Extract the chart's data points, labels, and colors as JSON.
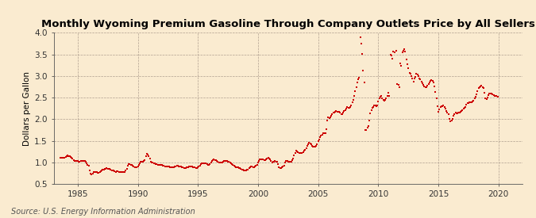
{
  "title": "Monthly Wyoming Premium Gasoline Through Company Outlets Price by All Sellers",
  "ylabel": "Dollars per Gallon",
  "source": "Source: U.S. Energy Information Administration",
  "xlim": [
    1983,
    2022
  ],
  "ylim": [
    0.5,
    4.0
  ],
  "xticks": [
    1985,
    1990,
    1995,
    2000,
    2005,
    2010,
    2015,
    2020
  ],
  "yticks": [
    0.5,
    1.0,
    1.5,
    2.0,
    2.5,
    3.0,
    3.5,
    4.0
  ],
  "bg_color": "#faebd0",
  "plot_bg_color": "#faebd0",
  "marker_color": "#cc0000",
  "marker_size": 3.5,
  "title_fontsize": 9.5,
  "label_fontsize": 7.5,
  "tick_fontsize": 7.5,
  "source_fontsize": 7.0,
  "data": [
    [
      1983.583,
      1.109
    ],
    [
      1983.667,
      1.103
    ],
    [
      1983.75,
      1.109
    ],
    [
      1983.833,
      1.115
    ],
    [
      1983.917,
      1.115
    ],
    [
      1984.0,
      1.125
    ],
    [
      1984.083,
      1.149
    ],
    [
      1984.167,
      1.159
    ],
    [
      1984.25,
      1.147
    ],
    [
      1984.333,
      1.143
    ],
    [
      1984.417,
      1.121
    ],
    [
      1984.5,
      1.117
    ],
    [
      1984.583,
      1.093
    ],
    [
      1984.667,
      1.062
    ],
    [
      1984.75,
      1.043
    ],
    [
      1984.833,
      1.046
    ],
    [
      1984.917,
      1.038
    ],
    [
      1985.0,
      1.03
    ],
    [
      1985.083,
      1.022
    ],
    [
      1985.167,
      1.028
    ],
    [
      1985.25,
      1.037
    ],
    [
      1985.333,
      1.043
    ],
    [
      1985.417,
      1.04
    ],
    [
      1985.5,
      1.037
    ],
    [
      1985.583,
      1.033
    ],
    [
      1985.667,
      1.02
    ],
    [
      1985.75,
      0.978
    ],
    [
      1985.833,
      0.943
    ],
    [
      1985.917,
      0.93
    ],
    [
      1986.0,
      0.82
    ],
    [
      1986.083,
      0.745
    ],
    [
      1986.167,
      0.72
    ],
    [
      1986.25,
      0.752
    ],
    [
      1986.333,
      0.779
    ],
    [
      1986.417,
      0.786
    ],
    [
      1986.5,
      0.787
    ],
    [
      1986.583,
      0.776
    ],
    [
      1986.667,
      0.765
    ],
    [
      1986.75,
      0.767
    ],
    [
      1986.833,
      0.786
    ],
    [
      1986.917,
      0.8
    ],
    [
      1987.0,
      0.818
    ],
    [
      1987.083,
      0.835
    ],
    [
      1987.167,
      0.843
    ],
    [
      1987.25,
      0.855
    ],
    [
      1987.333,
      0.86
    ],
    [
      1987.417,
      0.868
    ],
    [
      1987.5,
      0.86
    ],
    [
      1987.583,
      0.853
    ],
    [
      1987.667,
      0.848
    ],
    [
      1987.75,
      0.832
    ],
    [
      1987.833,
      0.818
    ],
    [
      1987.917,
      0.82
    ],
    [
      1988.0,
      0.818
    ],
    [
      1988.083,
      0.795
    ],
    [
      1988.167,
      0.79
    ],
    [
      1988.25,
      0.795
    ],
    [
      1988.333,
      0.793
    ],
    [
      1988.417,
      0.788
    ],
    [
      1988.5,
      0.785
    ],
    [
      1988.583,
      0.783
    ],
    [
      1988.667,
      0.778
    ],
    [
      1988.75,
      0.773
    ],
    [
      1988.833,
      0.773
    ],
    [
      1988.917,
      0.778
    ],
    [
      1989.0,
      0.82
    ],
    [
      1989.083,
      0.855
    ],
    [
      1989.167,
      0.92
    ],
    [
      1989.25,
      0.963
    ],
    [
      1989.333,
      0.958
    ],
    [
      1989.417,
      0.943
    ],
    [
      1989.5,
      0.938
    ],
    [
      1989.583,
      0.93
    ],
    [
      1989.667,
      0.915
    ],
    [
      1989.75,
      0.9
    ],
    [
      1989.833,
      0.893
    ],
    [
      1989.917,
      0.888
    ],
    [
      1990.0,
      0.91
    ],
    [
      1990.083,
      0.955
    ],
    [
      1990.167,
      0.988
    ],
    [
      1990.25,
      1.013
    ],
    [
      1990.333,
      1.02
    ],
    [
      1990.417,
      1.025
    ],
    [
      1990.5,
      1.035
    ],
    [
      1990.583,
      1.055
    ],
    [
      1990.667,
      1.15
    ],
    [
      1990.75,
      1.21
    ],
    [
      1990.833,
      1.19
    ],
    [
      1990.917,
      1.14
    ],
    [
      1991.0,
      1.09
    ],
    [
      1991.083,
      1.02
    ],
    [
      1991.167,
      0.998
    ],
    [
      1991.25,
      0.998
    ],
    [
      1991.333,
      0.988
    ],
    [
      1991.417,
      0.983
    ],
    [
      1991.5,
      0.973
    ],
    [
      1991.583,
      0.963
    ],
    [
      1991.667,
      0.948
    ],
    [
      1991.75,
      0.94
    ],
    [
      1991.833,
      0.943
    ],
    [
      1991.917,
      0.955
    ],
    [
      1992.0,
      0.94
    ],
    [
      1992.083,
      0.93
    ],
    [
      1992.167,
      0.92
    ],
    [
      1992.25,
      0.918
    ],
    [
      1992.333,
      0.915
    ],
    [
      1992.417,
      0.912
    ],
    [
      1992.5,
      0.908
    ],
    [
      1992.583,
      0.903
    ],
    [
      1992.667,
      0.898
    ],
    [
      1992.75,
      0.895
    ],
    [
      1992.833,
      0.893
    ],
    [
      1992.917,
      0.895
    ],
    [
      1993.0,
      0.9
    ],
    [
      1993.083,
      0.905
    ],
    [
      1993.167,
      0.913
    ],
    [
      1993.25,
      0.92
    ],
    [
      1993.333,
      0.92
    ],
    [
      1993.417,
      0.915
    ],
    [
      1993.5,
      0.91
    ],
    [
      1993.583,
      0.903
    ],
    [
      1993.667,
      0.895
    ],
    [
      1993.75,
      0.885
    ],
    [
      1993.833,
      0.88
    ],
    [
      1993.917,
      0.878
    ],
    [
      1994.0,
      0.88
    ],
    [
      1994.083,
      0.888
    ],
    [
      1994.167,
      0.898
    ],
    [
      1994.25,
      0.91
    ],
    [
      1994.333,
      0.915
    ],
    [
      1994.417,
      0.913
    ],
    [
      1994.5,
      0.908
    ],
    [
      1994.583,
      0.898
    ],
    [
      1994.667,
      0.89
    ],
    [
      1994.75,
      0.883
    ],
    [
      1994.833,
      0.878
    ],
    [
      1994.917,
      0.878
    ],
    [
      1995.0,
      0.885
    ],
    [
      1995.083,
      0.903
    ],
    [
      1995.167,
      0.93
    ],
    [
      1995.25,
      0.963
    ],
    [
      1995.333,
      0.975
    ],
    [
      1995.417,
      0.988
    ],
    [
      1995.5,
      0.99
    ],
    [
      1995.583,
      0.985
    ],
    [
      1995.667,
      0.975
    ],
    [
      1995.75,
      0.963
    ],
    [
      1995.833,
      0.95
    ],
    [
      1995.917,
      0.948
    ],
    [
      1996.0,
      0.96
    ],
    [
      1996.083,
      0.995
    ],
    [
      1996.167,
      1.04
    ],
    [
      1996.25,
      1.065
    ],
    [
      1996.333,
      1.068
    ],
    [
      1996.417,
      1.06
    ],
    [
      1996.5,
      1.048
    ],
    [
      1996.583,
      1.03
    ],
    [
      1996.667,
      1.013
    ],
    [
      1996.75,
      1.005
    ],
    [
      1996.833,
      1.0
    ],
    [
      1996.917,
      1.005
    ],
    [
      1997.0,
      1.01
    ],
    [
      1997.083,
      1.02
    ],
    [
      1997.167,
      1.03
    ],
    [
      1997.25,
      1.04
    ],
    [
      1997.333,
      1.04
    ],
    [
      1997.417,
      1.035
    ],
    [
      1997.5,
      1.028
    ],
    [
      1997.583,
      1.018
    ],
    [
      1997.667,
      1.003
    ],
    [
      1997.75,
      0.985
    ],
    [
      1997.833,
      0.968
    ],
    [
      1997.917,
      0.948
    ],
    [
      1998.0,
      0.933
    ],
    [
      1998.083,
      0.908
    ],
    [
      1998.167,
      0.888
    ],
    [
      1998.25,
      0.888
    ],
    [
      1998.333,
      0.89
    ],
    [
      1998.417,
      0.88
    ],
    [
      1998.5,
      0.87
    ],
    [
      1998.583,
      0.858
    ],
    [
      1998.667,
      0.843
    ],
    [
      1998.75,
      0.83
    ],
    [
      1998.833,
      0.82
    ],
    [
      1998.917,
      0.82
    ],
    [
      1999.0,
      0.825
    ],
    [
      1999.083,
      0.828
    ],
    [
      1999.167,
      0.84
    ],
    [
      1999.25,
      0.88
    ],
    [
      1999.333,
      0.9
    ],
    [
      1999.417,
      0.91
    ],
    [
      1999.5,
      0.905
    ],
    [
      1999.583,
      0.898
    ],
    [
      1999.667,
      0.898
    ],
    [
      1999.75,
      0.905
    ],
    [
      1999.833,
      0.925
    ],
    [
      1999.917,
      0.948
    ],
    [
      2000.0,
      1.005
    ],
    [
      2000.083,
      1.043
    ],
    [
      2000.167,
      1.068
    ],
    [
      2000.25,
      1.08
    ],
    [
      2000.333,
      1.08
    ],
    [
      2000.417,
      1.068
    ],
    [
      2000.5,
      1.058
    ],
    [
      2000.583,
      1.063
    ],
    [
      2000.667,
      1.075
    ],
    [
      2000.75,
      1.098
    ],
    [
      2000.833,
      1.108
    ],
    [
      2000.917,
      1.1
    ],
    [
      2001.0,
      1.073
    ],
    [
      2001.083,
      1.033
    ],
    [
      2001.167,
      1.003
    ],
    [
      2001.25,
      1.013
    ],
    [
      2001.333,
      1.028
    ],
    [
      2001.417,
      1.033
    ],
    [
      2001.5,
      1.025
    ],
    [
      2001.583,
      1.013
    ],
    [
      2001.667,
      0.97
    ],
    [
      2001.75,
      0.898
    ],
    [
      2001.833,
      0.875
    ],
    [
      2001.917,
      0.878
    ],
    [
      2002.0,
      0.898
    ],
    [
      2002.083,
      0.913
    ],
    [
      2002.167,
      0.935
    ],
    [
      2002.25,
      1.008
    ],
    [
      2002.333,
      1.038
    ],
    [
      2002.417,
      1.035
    ],
    [
      2002.5,
      1.028
    ],
    [
      2002.583,
      1.02
    ],
    [
      2002.667,
      1.02
    ],
    [
      2002.75,
      1.025
    ],
    [
      2002.833,
      1.055
    ],
    [
      2002.917,
      1.098
    ],
    [
      2003.0,
      1.168
    ],
    [
      2003.083,
      1.228
    ],
    [
      2003.167,
      1.27
    ],
    [
      2003.25,
      1.258
    ],
    [
      2003.333,
      1.245
    ],
    [
      2003.417,
      1.22
    ],
    [
      2003.5,
      1.215
    ],
    [
      2003.583,
      1.218
    ],
    [
      2003.667,
      1.228
    ],
    [
      2003.75,
      1.248
    ],
    [
      2003.833,
      1.268
    ],
    [
      2003.917,
      1.293
    ],
    [
      2004.0,
      1.34
    ],
    [
      2004.083,
      1.39
    ],
    [
      2004.167,
      1.43
    ],
    [
      2004.25,
      1.45
    ],
    [
      2004.333,
      1.44
    ],
    [
      2004.417,
      1.42
    ],
    [
      2004.5,
      1.39
    ],
    [
      2004.583,
      1.368
    ],
    [
      2004.667,
      1.36
    ],
    [
      2004.75,
      1.368
    ],
    [
      2004.833,
      1.395
    ],
    [
      2004.917,
      1.43
    ],
    [
      2005.0,
      1.488
    ],
    [
      2005.083,
      1.538
    ],
    [
      2005.167,
      1.58
    ],
    [
      2005.25,
      1.62
    ],
    [
      2005.333,
      1.65
    ],
    [
      2005.417,
      1.678
    ],
    [
      2005.5,
      1.68
    ],
    [
      2005.583,
      1.68
    ],
    [
      2005.667,
      1.768
    ],
    [
      2005.75,
      1.98
    ],
    [
      2005.833,
      2.048
    ],
    [
      2005.917,
      2.028
    ],
    [
      2006.0,
      2.048
    ],
    [
      2006.083,
      2.088
    ],
    [
      2006.167,
      2.12
    ],
    [
      2006.25,
      2.148
    ],
    [
      2006.333,
      2.148
    ],
    [
      2006.417,
      2.178
    ],
    [
      2006.5,
      2.188
    ],
    [
      2006.583,
      2.178
    ],
    [
      2006.667,
      2.168
    ],
    [
      2006.75,
      2.168
    ],
    [
      2006.833,
      2.148
    ],
    [
      2006.917,
      2.118
    ],
    [
      2007.0,
      2.118
    ],
    [
      2007.083,
      2.148
    ],
    [
      2007.167,
      2.188
    ],
    [
      2007.25,
      2.218
    ],
    [
      2007.333,
      2.248
    ],
    [
      2007.417,
      2.278
    ],
    [
      2007.5,
      2.268
    ],
    [
      2007.583,
      2.268
    ],
    [
      2007.667,
      2.288
    ],
    [
      2007.75,
      2.318
    ],
    [
      2007.833,
      2.388
    ],
    [
      2007.917,
      2.448
    ],
    [
      2008.0,
      2.548
    ],
    [
      2008.083,
      2.648
    ],
    [
      2008.167,
      2.748
    ],
    [
      2008.25,
      2.848
    ],
    [
      2008.333,
      2.928
    ],
    [
      2008.417,
      2.968
    ],
    [
      2008.5,
      3.888
    ],
    [
      2008.583,
      3.748
    ],
    [
      2008.667,
      3.508
    ],
    [
      2008.75,
      3.128
    ],
    [
      2008.833,
      2.848
    ],
    [
      2008.917,
      1.748
    ],
    [
      2009.0,
      1.748
    ],
    [
      2009.083,
      1.798
    ],
    [
      2009.167,
      1.838
    ],
    [
      2009.25,
      1.978
    ],
    [
      2009.333,
      2.128
    ],
    [
      2009.417,
      2.218
    ],
    [
      2009.5,
      2.258
    ],
    [
      2009.583,
      2.288
    ],
    [
      2009.667,
      2.328
    ],
    [
      2009.75,
      2.328
    ],
    [
      2009.833,
      2.308
    ],
    [
      2009.917,
      2.328
    ],
    [
      2010.0,
      2.418
    ],
    [
      2010.083,
      2.488
    ],
    [
      2010.167,
      2.528
    ],
    [
      2010.25,
      2.548
    ],
    [
      2010.333,
      2.488
    ],
    [
      2010.417,
      2.448
    ],
    [
      2010.5,
      2.428
    ],
    [
      2010.583,
      2.448
    ],
    [
      2010.667,
      2.488
    ],
    [
      2010.75,
      2.548
    ],
    [
      2010.833,
      2.608
    ],
    [
      2010.917,
      2.548
    ],
    [
      2011.0,
      3.498
    ],
    [
      2011.083,
      3.468
    ],
    [
      2011.167,
      3.398
    ],
    [
      2011.25,
      3.558
    ],
    [
      2011.333,
      3.548
    ],
    [
      2011.5,
      3.578
    ],
    [
      2011.583,
      2.808
    ],
    [
      2011.667,
      2.798
    ],
    [
      2011.75,
      2.748
    ],
    [
      2011.833,
      3.298
    ],
    [
      2011.917,
      3.238
    ],
    [
      2012.0,
      3.538
    ],
    [
      2012.083,
      3.588
    ],
    [
      2012.167,
      3.618
    ],
    [
      2012.25,
      3.558
    ],
    [
      2012.333,
      3.378
    ],
    [
      2012.417,
      3.268
    ],
    [
      2012.5,
      3.178
    ],
    [
      2012.583,
      3.068
    ],
    [
      2012.667,
      3.048
    ],
    [
      2012.75,
      2.998
    ],
    [
      2012.833,
      2.948
    ],
    [
      2012.917,
      2.868
    ],
    [
      2013.0,
      2.948
    ],
    [
      2013.083,
      2.988
    ],
    [
      2013.167,
      3.048
    ],
    [
      2013.25,
      3.028
    ],
    [
      2013.333,
      2.998
    ],
    [
      2013.417,
      2.948
    ],
    [
      2013.5,
      2.928
    ],
    [
      2013.583,
      2.878
    ],
    [
      2013.667,
      2.838
    ],
    [
      2013.75,
      2.788
    ],
    [
      2013.833,
      2.758
    ],
    [
      2013.917,
      2.748
    ],
    [
      2014.0,
      2.748
    ],
    [
      2014.083,
      2.778
    ],
    [
      2014.167,
      2.818
    ],
    [
      2014.25,
      2.858
    ],
    [
      2014.333,
      2.888
    ],
    [
      2014.417,
      2.908
    ],
    [
      2014.5,
      2.888
    ],
    [
      2014.583,
      2.848
    ],
    [
      2014.667,
      2.768
    ],
    [
      2014.75,
      2.638
    ],
    [
      2014.833,
      2.478
    ],
    [
      2014.917,
      2.298
    ],
    [
      2015.0,
      2.178
    ],
    [
      2015.083,
      2.228
    ],
    [
      2015.167,
      2.288
    ],
    [
      2015.25,
      2.298
    ],
    [
      2015.333,
      2.308
    ],
    [
      2015.417,
      2.318
    ],
    [
      2015.5,
      2.288
    ],
    [
      2015.583,
      2.238
    ],
    [
      2015.667,
      2.198
    ],
    [
      2015.75,
      2.158
    ],
    [
      2015.833,
      2.118
    ],
    [
      2015.917,
      2.008
    ],
    [
      2016.0,
      1.958
    ],
    [
      2016.083,
      1.968
    ],
    [
      2016.167,
      2.008
    ],
    [
      2016.25,
      2.088
    ],
    [
      2016.333,
      2.118
    ],
    [
      2016.417,
      2.148
    ],
    [
      2016.5,
      2.128
    ],
    [
      2016.583,
      2.138
    ],
    [
      2016.667,
      2.148
    ],
    [
      2016.75,
      2.158
    ],
    [
      2016.833,
      2.168
    ],
    [
      2016.917,
      2.188
    ],
    [
      2017.0,
      2.218
    ],
    [
      2017.083,
      2.248
    ],
    [
      2017.167,
      2.268
    ],
    [
      2017.25,
      2.288
    ],
    [
      2017.333,
      2.338
    ],
    [
      2017.417,
      2.368
    ],
    [
      2017.5,
      2.378
    ],
    [
      2017.583,
      2.398
    ],
    [
      2017.667,
      2.388
    ],
    [
      2017.75,
      2.398
    ],
    [
      2017.833,
      2.418
    ],
    [
      2017.917,
      2.438
    ],
    [
      2018.0,
      2.478
    ],
    [
      2018.083,
      2.518
    ],
    [
      2018.167,
      2.578
    ],
    [
      2018.25,
      2.648
    ],
    [
      2018.333,
      2.718
    ],
    [
      2018.417,
      2.748
    ],
    [
      2018.5,
      2.758
    ],
    [
      2018.583,
      2.778
    ],
    [
      2018.667,
      2.748
    ],
    [
      2018.75,
      2.718
    ],
    [
      2018.833,
      2.618
    ],
    [
      2018.917,
      2.488
    ],
    [
      2019.0,
      2.458
    ],
    [
      2019.083,
      2.498
    ],
    [
      2019.167,
      2.558
    ],
    [
      2019.25,
      2.598
    ],
    [
      2019.333,
      2.598
    ],
    [
      2019.417,
      2.598
    ],
    [
      2019.5,
      2.578
    ],
    [
      2019.583,
      2.558
    ],
    [
      2019.667,
      2.548
    ],
    [
      2019.75,
      2.548
    ],
    [
      2019.833,
      2.548
    ],
    [
      2019.917,
      2.518
    ]
  ]
}
